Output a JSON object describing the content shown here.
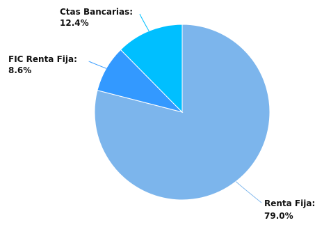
{
  "chart_data": {
    "type": "pie",
    "slices": [
      {
        "label": "Renta Fija:",
        "percent_text": "79.0%",
        "value": 79.0,
        "color": "#7cb5ec"
      },
      {
        "label": "FIC Renta Fija:",
        "percent_text": "8.6%",
        "value": 8.6,
        "color": "#3399ff"
      },
      {
        "label": "Ctas Bancarias:",
        "percent_text": "12.4%",
        "value": 12.4,
        "color": "#00bfff"
      }
    ]
  }
}
